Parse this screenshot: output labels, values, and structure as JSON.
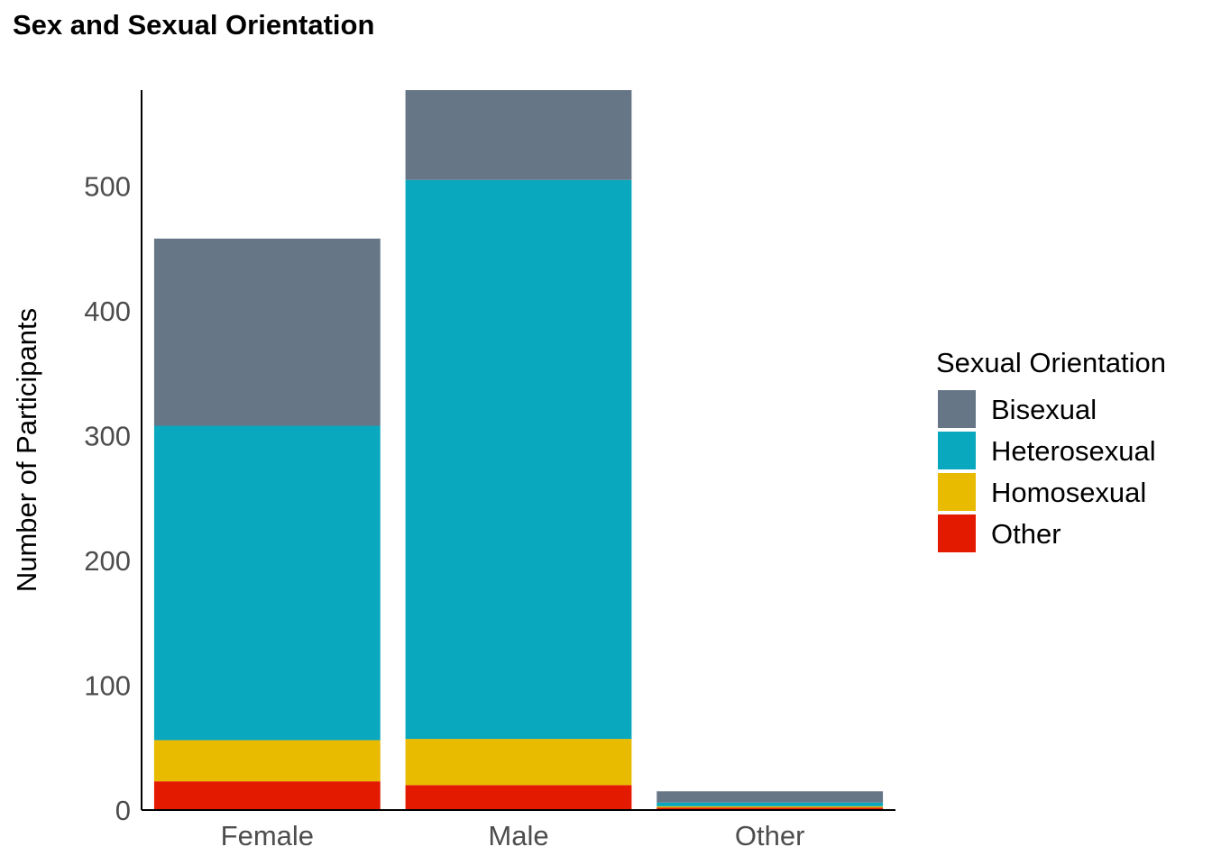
{
  "chart_data": {
    "type": "bar",
    "stacked": true,
    "title": "Sex and Sexual Orientation",
    "xlabel": "",
    "ylabel": "Number of Participants",
    "categories": [
      "Female",
      "Male",
      "Other"
    ],
    "ylim": [
      0,
      577
    ],
    "yticks": [
      0,
      100,
      200,
      300,
      400,
      500
    ],
    "legend": {
      "title": "Sexual Orientation",
      "position": "right"
    },
    "series": [
      {
        "name": "Other",
        "color": "#E31A00",
        "values": [
          23,
          20,
          2
        ]
      },
      {
        "name": "Homosexual",
        "color": "#E8BA00",
        "values": [
          33,
          37,
          1
        ]
      },
      {
        "name": "Heterosexual",
        "color": "#0AA8BE",
        "values": [
          252,
          448,
          3
        ]
      },
      {
        "name": "Bisexual",
        "color": "#667686",
        "values": [
          150,
          72,
          9
        ]
      }
    ],
    "legend_order": [
      "Bisexual",
      "Heterosexual",
      "Homosexual",
      "Other"
    ]
  }
}
